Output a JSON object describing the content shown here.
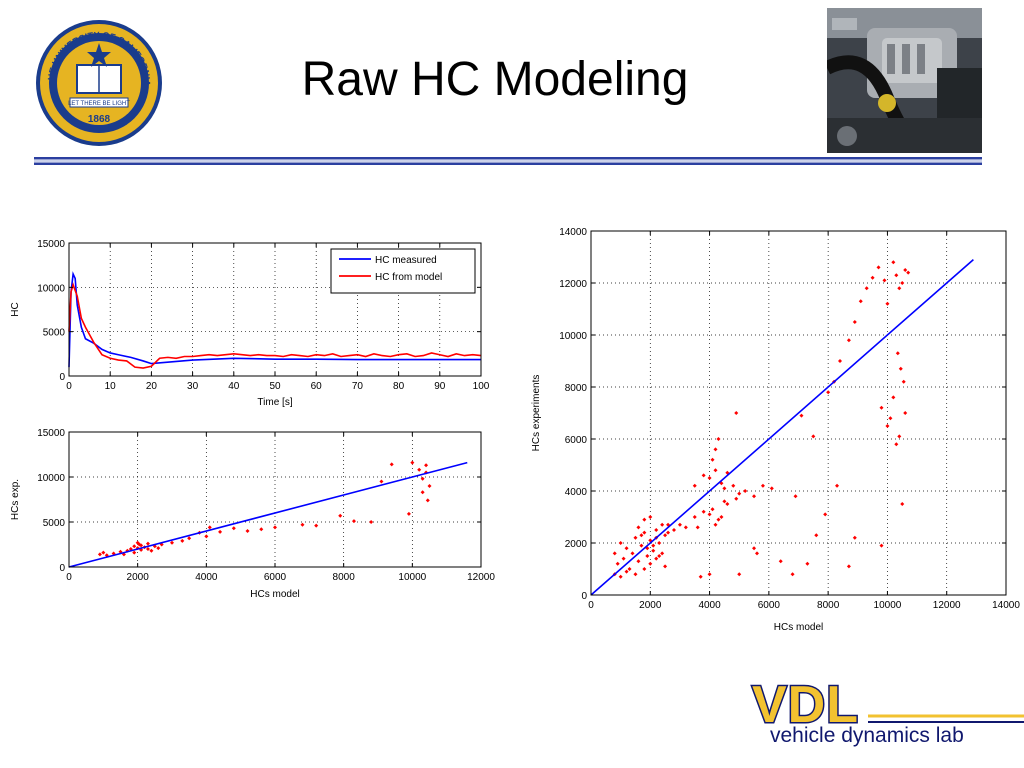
{
  "slide": {
    "title": "Raw HC Modeling",
    "seal_text": {
      "top": "THE UNIVERSITY OF CALIFORNIA",
      "ribbon": "LET THERE BE LIGHT",
      "year": "1868"
    },
    "logo": {
      "letters": "VDL",
      "tagline": "vehicle dynamics lab"
    }
  },
  "colors": {
    "rule_blue": "#2b3fa0",
    "series_blue": "#0000ff",
    "series_red": "#ff0000",
    "seal_blue": "#1a3c8c",
    "seal_gold": "#e6b422",
    "vdl_navy": "#10186e",
    "vdl_gold": "#f2c230"
  },
  "photo": {
    "icon": "engine-photo"
  },
  "chart_data": [
    {
      "type": "line",
      "title": "",
      "xlabel": "Time [s]",
      "ylabel": "HC",
      "xlim": [
        0,
        100
      ],
      "ylim": [
        0,
        15000
      ],
      "xticks": [
        0,
        10,
        20,
        30,
        40,
        50,
        60,
        70,
        80,
        90,
        100
      ],
      "yticks": [
        0,
        5000,
        10000,
        15000
      ],
      "grid": true,
      "legend": "top-right",
      "series": [
        {
          "name": "HC measured",
          "color": "#0000ff",
          "x": [
            0,
            0.5,
            1,
            1.5,
            2,
            3,
            4,
            6,
            8,
            10,
            12,
            15,
            18,
            20,
            25,
            30,
            35,
            40,
            45,
            50,
            60,
            70,
            80,
            90,
            100
          ],
          "y": [
            1000,
            9500,
            11500,
            11000,
            8000,
            5500,
            4200,
            3700,
            3000,
            2600,
            2400,
            2100,
            1700,
            1400,
            1600,
            1800,
            1900,
            2000,
            1950,
            1900,
            1900,
            1850,
            1850,
            1850,
            1850
          ]
        },
        {
          "name": "HC from model",
          "color": "#ff0000",
          "x": [
            0,
            0.5,
            1,
            2,
            3,
            4,
            6,
            8,
            10,
            12,
            14,
            16,
            18,
            20,
            22,
            24,
            26,
            28,
            30,
            32,
            34,
            36,
            38,
            40,
            42,
            44,
            46,
            48,
            50,
            52,
            54,
            56,
            58,
            60,
            62,
            64,
            66,
            68,
            70,
            72,
            74,
            76,
            78,
            80,
            82,
            84,
            86,
            88,
            90,
            92,
            94,
            96,
            98,
            100
          ],
          "y": [
            5000,
            9500,
            10300,
            9000,
            6500,
            5500,
            3800,
            2400,
            2000,
            1800,
            1700,
            1000,
            900,
            1100,
            2000,
            2100,
            2000,
            2200,
            2200,
            2300,
            2400,
            2300,
            2400,
            2500,
            2400,
            2300,
            2400,
            2300,
            2300,
            2200,
            2400,
            2300,
            2200,
            2400,
            2300,
            2500,
            2200,
            2300,
            2400,
            2200,
            2500,
            2300,
            2200,
            2400,
            2500,
            2200,
            2300,
            2600,
            2400,
            2200,
            2500,
            2300,
            2400,
            2300
          ]
        }
      ]
    },
    {
      "type": "scatter",
      "title": "",
      "xlabel": "HCs model",
      "ylabel": "HCs exp.",
      "xlim": [
        0,
        12000
      ],
      "ylim": [
        0,
        15000
      ],
      "xticks": [
        0,
        2000,
        4000,
        6000,
        8000,
        10000,
        12000
      ],
      "yticks": [
        0,
        5000,
        10000,
        15000
      ],
      "grid": true,
      "series": [
        {
          "color": "#ff0000",
          "x": [
            900,
            1000,
            1100,
            1300,
            1500,
            1600,
            1700,
            1800,
            1900,
            2000,
            2050,
            2100,
            2200,
            2300,
            2400,
            2500,
            2600,
            1900,
            2000,
            2100,
            2300,
            2700,
            3000,
            3300,
            3500,
            3800,
            4000,
            4100,
            4400,
            4800,
            5200,
            5600,
            6000,
            6800,
            7200,
            7900,
            8300,
            8800,
            9100,
            9400,
            9900,
            10000,
            10200,
            10300,
            10400,
            10450,
            10500,
            10300,
            10400
          ],
          "y": [
            1400,
            1600,
            1300,
            1500,
            1700,
            1400,
            1800,
            2000,
            2300,
            2100,
            2500,
            1900,
            2200,
            2000,
            1800,
            2300,
            2100,
            1600,
            2700,
            2400,
            2600,
            2500,
            2700,
            2900,
            3200,
            3800,
            3400,
            4400,
            3900,
            4300,
            4000,
            4200,
            4400,
            4700,
            4600,
            5700,
            5100,
            5000,
            9500,
            11400,
            5900,
            11600,
            10800,
            9800,
            11300,
            7400,
            9000,
            8300,
            10500
          ]
        },
        {
          "color": "#0000ff",
          "x": [
            0,
            11600
          ],
          "y": [
            0,
            11600
          ]
        }
      ]
    },
    {
      "type": "scatter",
      "title": "",
      "xlabel": "HCs model",
      "ylabel": "HCs experiments",
      "xlim": [
        0,
        14000
      ],
      "ylim": [
        0,
        14000
      ],
      "xticks": [
        0,
        2000,
        4000,
        6000,
        8000,
        10000,
        12000,
        14000
      ],
      "yticks": [
        0,
        2000,
        4000,
        6000,
        8000,
        10000,
        12000,
        14000
      ],
      "grid": true,
      "series": [
        {
          "color": "#ff0000",
          "x": [
            800,
            900,
            1000,
            1100,
            1200,
            1300,
            1400,
            1500,
            1600,
            1700,
            1800,
            1900,
            2000,
            2100,
            2200,
            2300,
            2400,
            2500,
            2600,
            800,
            1000,
            1200,
            1500,
            1800,
            2000,
            2200,
            2500,
            1600,
            1800,
            2000,
            2200,
            2400,
            2600,
            2800,
            3000,
            3200,
            2100,
            2300,
            1700,
            1900,
            3500,
            3800,
            4000,
            4200,
            4400,
            4600,
            4800,
            4200,
            4300,
            4100,
            4500,
            3500,
            3800,
            4000,
            4300,
            4600,
            4900,
            5200,
            5500,
            5800,
            6100,
            3600,
            4100,
            4500,
            5000,
            4200,
            4400,
            4000,
            5000,
            6900,
            7100,
            7600,
            7900,
            8200,
            8000,
            8400,
            8700,
            8900,
            9100,
            9300,
            9500,
            9700,
            9900,
            10000,
            10200,
            10300,
            10400,
            10500,
            10600,
            10700,
            10350,
            10450,
            10550,
            9800,
            10000,
            10200,
            10400,
            10100,
            10300,
            10600,
            8300,
            7500,
            4900,
            3700,
            5600,
            5500,
            6800,
            8700,
            8900,
            9800,
            10500,
            6400,
            7300
          ],
          "y": [
            1600,
            1200,
            2000,
            1400,
            1800,
            1000,
            1600,
            2200,
            1300,
            1900,
            2400,
            1500,
            2100,
            1700,
            2500,
            2000,
            1600,
            2300,
            2700,
            800,
            700,
            900,
            800,
            1000,
            1200,
            1400,
            1100,
            2600,
            2900,
            3000,
            2200,
            2700,
            2400,
            2500,
            2700,
            2600,
            1900,
            1500,
            2300,
            1800,
            4200,
            4600,
            4500,
            4800,
            4300,
            4700,
            4200,
            5600,
            6000,
            5200,
            4100,
            3000,
            3200,
            3100,
            2900,
            3500,
            3700,
            4000,
            3800,
            4200,
            4100,
            2600,
            3300,
            3600,
            3900,
            2700,
            3000,
            800,
            800,
            3800,
            6900,
            2300,
            3100,
            8200,
            7800,
            9000,
            9800,
            10500,
            11300,
            11800,
            12200,
            12600,
            12100,
            11200,
            12800,
            12300,
            11800,
            12000,
            12500,
            12400,
            9300,
            8700,
            8200,
            7200,
            6500,
            7600,
            6100,
            6800,
            5800,
            7000,
            4200,
            6100,
            7000,
            700,
            1600,
            1800,
            800,
            1100,
            2200,
            1900,
            3500,
            1300,
            1200
          ]
        },
        {
          "color": "#0000ff",
          "x": [
            0,
            12900
          ],
          "y": [
            0,
            12900
          ]
        }
      ]
    }
  ]
}
